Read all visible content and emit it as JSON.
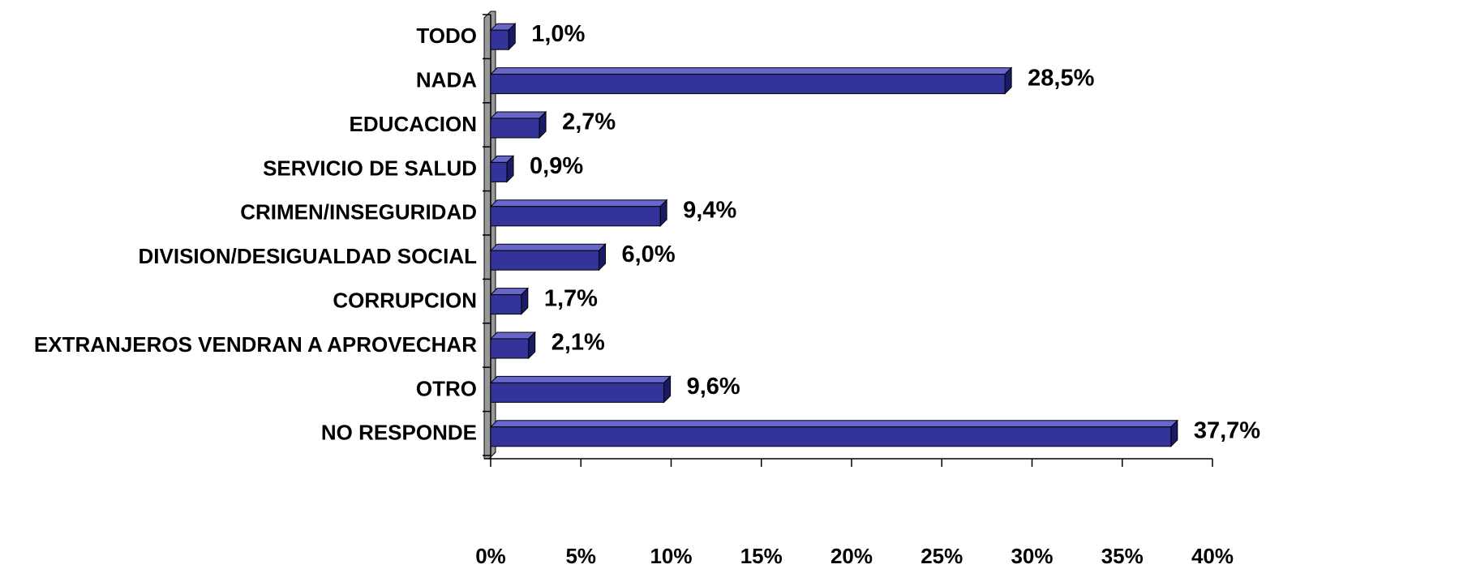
{
  "chart_data": {
    "type": "bar",
    "orientation": "horizontal",
    "categories": [
      "TODO",
      "NADA",
      "EDUCACION",
      "SERVICIO DE SALUD",
      "CRIMEN/INSEGURIDAD",
      "DIVISION/DESIGUALDAD SOCIAL",
      "CORRUPCION",
      "EXTRANJEROS VENDRAN A APROVECHAR",
      "OTRO",
      "NO RESPONDE"
    ],
    "values": [
      1.0,
      28.5,
      2.7,
      0.9,
      9.4,
      6.0,
      1.7,
      2.1,
      9.6,
      37.7
    ],
    "value_labels": [
      "1,0%",
      "28,5%",
      "2,7%",
      "0,9%",
      "9,4%",
      "6,0%",
      "1,7%",
      "2,1%",
      "9,6%",
      "37,7%"
    ],
    "color": "#333399",
    "xlim": [
      0,
      40
    ],
    "xticks": [
      {
        "value": 0,
        "label": "0%"
      },
      {
        "value": 5,
        "label": "5%"
      },
      {
        "value": 10,
        "label": "10%"
      },
      {
        "value": 15,
        "label": "15%"
      },
      {
        "value": 20,
        "label": "20%"
      },
      {
        "value": 25,
        "label": "25%"
      },
      {
        "value": 30,
        "label": "30%"
      },
      {
        "value": 35,
        "label": "35%"
      },
      {
        "value": 40,
        "label": "40%"
      }
    ],
    "grid": false
  }
}
